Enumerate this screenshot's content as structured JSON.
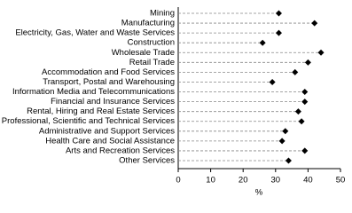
{
  "chart_data": {
    "type": "dot",
    "categories": [
      "Mining",
      "Manufacturing",
      "Electricity, Gas, Water and Waste Services",
      "Construction",
      "Wholesale Trade",
      "Retail Trade",
      "Accommodation and Food Services",
      "Transport, Postal and Warehousing",
      "Information Media and Telecommunications",
      "Financial and Insurance Services",
      "Rental, Hiring and Real Estate Services",
      "Professional, Scientific and Technical Services",
      "Administrative and Support Services",
      "Health Care and Social Assistance",
      "Arts and Recreation Services",
      "Other Services"
    ],
    "values": [
      31,
      42,
      31,
      26,
      44,
      40,
      36,
      29,
      39,
      39,
      37,
      38,
      33,
      32,
      39,
      34
    ],
    "color": "#000000",
    "xlim": [
      0,
      50
    ],
    "xticks": [
      0,
      10,
      20,
      30,
      40,
      50
    ],
    "xlabel": "%"
  }
}
